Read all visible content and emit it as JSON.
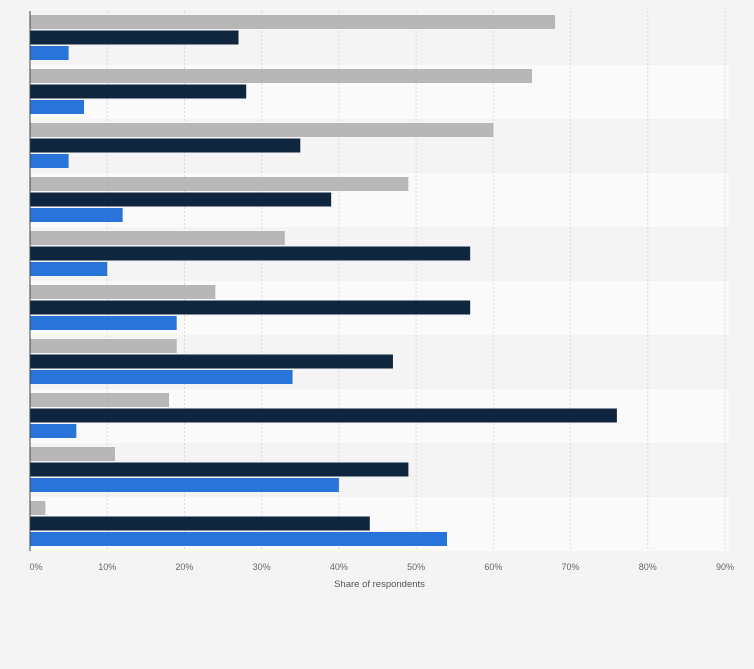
{
  "chart_data": {
    "type": "bar",
    "orientation": "horizontal",
    "title": "",
    "xlabel": "Share of respondents",
    "ylabel": "",
    "xlim": [
      0,
      90
    ],
    "tick_values": [
      0,
      10,
      20,
      30,
      40,
      50,
      60,
      70,
      80,
      90
    ],
    "tick_labels": [
      "0%",
      "10%",
      "20%",
      "30%",
      "40%",
      "50%",
      "60%",
      "70%",
      "80%",
      "90%"
    ],
    "grid": true,
    "legend": "none",
    "categories": [
      "",
      "",
      "",
      "",
      "",
      "",
      "",
      "",
      "",
      ""
    ],
    "series": [
      {
        "color": "#b7b7b7",
        "values": [
          68,
          65,
          60,
          49,
          33,
          24,
          19,
          18,
          11,
          2
        ]
      },
      {
        "color": "#10263f",
        "values": [
          27,
          28,
          35,
          39,
          57,
          57,
          47,
          76,
          49,
          44
        ]
      },
      {
        "color": "#2874d8",
        "values": [
          5,
          7,
          5,
          12,
          10,
          19,
          34,
          6,
          40,
          54
        ]
      }
    ]
  },
  "colors": {
    "page_background": "#f4f4f4",
    "band_dark": "#f4f4f4",
    "band_light": "#fafafa",
    "grid_line": "#d9d9d9",
    "axis_line": "#444444"
  }
}
